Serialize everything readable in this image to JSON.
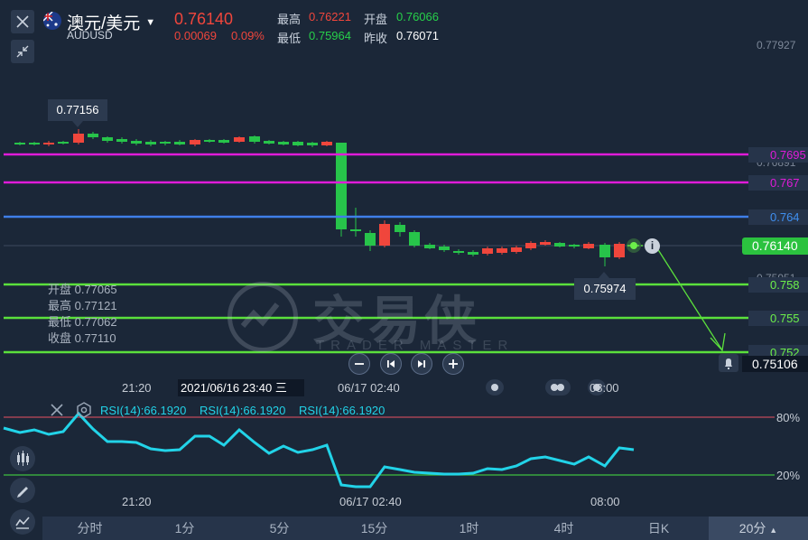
{
  "header": {
    "title": "澳元/美元",
    "symbol": "AUDUSD",
    "price": "0.76140",
    "change": "0.00069",
    "change_pct": "0.09%",
    "high_label": "最高",
    "high": "0.76221",
    "low_label": "最低",
    "low": "0.75964",
    "open_label": "开盘",
    "open": "0.76066",
    "prev_close_label": "昨收",
    "prev_close": "0.76071"
  },
  "price_axis": {
    "top": "0.77927",
    "current": "0.76140",
    "bottom": "0.75106",
    "overlap_1": "0.76891",
    "overlap_2": "0.75951"
  },
  "lines": [
    {
      "value": "0.7695",
      "color": "#e01bd9"
    },
    {
      "value": "0.767",
      "color": "#e01bd9"
    },
    {
      "value": "0.764",
      "color": "#3f7fe8"
    },
    {
      "value": "0.758",
      "color": "#5be03c"
    },
    {
      "value": "0.755",
      "color": "#5be03c"
    },
    {
      "value": "0.752",
      "color": "#5be03c"
    }
  ],
  "tooltips": {
    "high_marker": "0.77156",
    "low_marker": "0.75974"
  },
  "ohlc_panel": {
    "open": "开盘 0.77065",
    "high": "最高 0.77121",
    "low": "最低 0.77062",
    "close": "收盘 0.77110"
  },
  "watermark": {
    "cn": "交易侠",
    "en": "TRADER MASTER"
  },
  "time_axis": {
    "t1": "21:20",
    "selected": "2021/06/16 23:40 三",
    "t2": "06/17 02:40",
    "t3": "08:00"
  },
  "rsi": {
    "label1": "RSI(14):66.1920",
    "label2": "RSI(14):66.1920",
    "label3": "RSI(14):66.1920",
    "upper": "80%",
    "lower": "20%",
    "t1": "21:20",
    "t2": "06/17 02:40",
    "t3": "08:00"
  },
  "tabs": [
    "分时",
    "1分",
    "5分",
    "15分",
    "1时",
    "4时",
    "日K",
    "20分"
  ],
  "colors": {
    "up": "#f0463c",
    "down": "#27c44a",
    "rsi_line": "#22d3e8",
    "rsi_upper": "#c0485a",
    "rsi_lower": "#3fbf3f"
  }
}
